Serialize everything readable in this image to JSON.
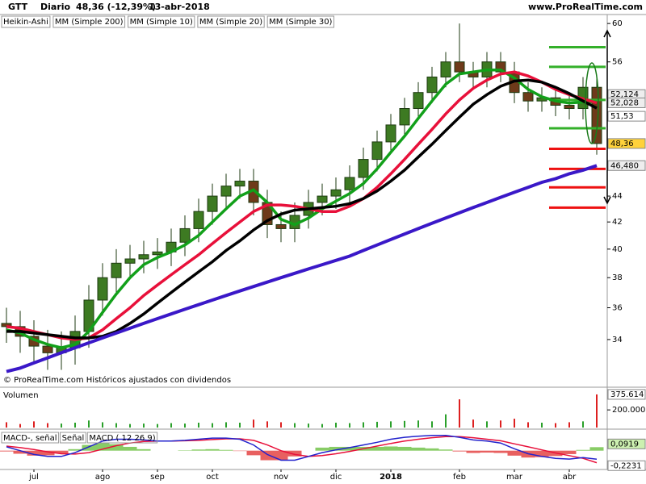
{
  "chart_data": [
    {
      "type": "candlestick",
      "title": "GTT",
      "period": "Diario",
      "last_change": "48,36 (-12,39%)",
      "date": "13-abr-2018",
      "source": "www.ProRealTime.com",
      "note": "© ProRealTime.com Históricos ajustados con dividendos",
      "log_scale": true,
      "ylim": [
        31.3,
        60.8
      ],
      "yticks": [
        34,
        36,
        38,
        40,
        42,
        44,
        56,
        60
      ],
      "candles": {
        "name": "Heikin-Ashi",
        "up_color": "#3d7a22",
        "down_color": "#6e3a1a",
        "last_label": "48,36",
        "open": [
          35,
          34.8,
          34.2,
          33.6,
          33.2,
          33.5,
          34.5,
          36.5,
          38,
          39,
          39.3,
          39.6,
          39.8,
          40.5,
          41.5,
          42.8,
          44,
          44.8,
          45.2,
          43.5,
          41.8,
          41.5,
          42.5,
          43.5,
          44,
          44.5,
          45.5,
          47,
          48.5,
          50,
          51.5,
          53,
          54.5,
          56,
          55,
          54.5,
          56,
          55,
          53,
          52.2,
          52.5,
          51.8,
          51.5,
          53.5
        ],
        "high": [
          36,
          35.8,
          35.2,
          34.6,
          34.5,
          35.5,
          37.5,
          39,
          40,
          40.3,
          40.6,
          40.8,
          41.5,
          42.5,
          43.8,
          45,
          45.8,
          46.2,
          46.2,
          44.5,
          42.8,
          43.5,
          44.5,
          45,
          45.5,
          46.5,
          48,
          49.5,
          51,
          52.5,
          54,
          55.5,
          57,
          60,
          56,
          57,
          57,
          56,
          54,
          53.5,
          53.5,
          52.8,
          54.5,
          54.5
        ],
        "low": [
          33.8,
          33.2,
          32.6,
          32.2,
          32.2,
          32.5,
          33.5,
          35.5,
          37,
          38,
          38.3,
          38.6,
          38.8,
          39.5,
          40.5,
          41.8,
          43,
          43.8,
          42.5,
          40.8,
          40.5,
          40.5,
          41.5,
          42.5,
          43,
          43.5,
          44.5,
          46,
          47.5,
          49,
          50.5,
          52,
          53.5,
          54,
          53.5,
          53.5,
          54,
          52,
          51.2,
          51.2,
          50.8,
          50.5,
          50.5,
          47.4
        ],
        "close": [
          34.8,
          34.2,
          33.6,
          33.2,
          33.5,
          34.5,
          36.5,
          38,
          39,
          39.3,
          39.6,
          39.8,
          40.5,
          41.5,
          42.8,
          44,
          44.8,
          45.2,
          43.5,
          41.8,
          41.5,
          42.5,
          43.5,
          44,
          44.5,
          45.5,
          47,
          48.5,
          50,
          51.5,
          53,
          54.5,
          56,
          55,
          54.5,
          56,
          55,
          53,
          52.2,
          52.5,
          51.8,
          51.5,
          53.5,
          48.36
        ]
      },
      "series": [
        {
          "name": "MM (Simple 10)",
          "color": "#12a01a",
          "last_label": "52,124",
          "values": [
            34.6,
            34.4,
            34,
            33.7,
            33.5,
            33.7,
            34.5,
            35.7,
            36.9,
            38,
            38.9,
            39.4,
            39.8,
            40.3,
            41,
            42,
            43,
            44,
            44.5,
            43.5,
            42.2,
            41.8,
            42.3,
            43,
            43.6,
            44.2,
            45,
            46.2,
            47.6,
            49,
            50.6,
            52.2,
            53.8,
            54.8,
            55,
            55.2,
            55.2,
            54.4,
            53.3,
            52.6,
            52.2,
            52,
            52.1,
            52.124
          ]
        },
        {
          "name": "MM (Simple 20)",
          "color": "#e8103a",
          "last_label": "52,028",
          "values": [
            34.8,
            34.7,
            34.5,
            34.3,
            34.1,
            34,
            34.1,
            34.6,
            35.3,
            36,
            36.8,
            37.5,
            38.2,
            38.9,
            39.6,
            40.4,
            41.2,
            42,
            42.8,
            43.3,
            43.3,
            43.2,
            43,
            42.8,
            42.8,
            43.2,
            43.8,
            44.7,
            45.8,
            47,
            48.3,
            49.6,
            51,
            52.3,
            53.4,
            54.2,
            54.8,
            55,
            54.6,
            54,
            53.3,
            52.8,
            52.4,
            52.028
          ]
        },
        {
          "name": "MM (Simple 30)",
          "color": "#000000",
          "last_label": "51,53",
          "values": [
            34.5,
            34.5,
            34.4,
            34.3,
            34.2,
            34.1,
            34.1,
            34.2,
            34.5,
            35,
            35.6,
            36.3,
            37,
            37.7,
            38.4,
            39.1,
            39.9,
            40.6,
            41.4,
            42.1,
            42.6,
            42.9,
            43,
            43.1,
            43.2,
            43.4,
            43.8,
            44.4,
            45.2,
            46.1,
            47.2,
            48.3,
            49.5,
            50.7,
            51.9,
            52.8,
            53.6,
            54.1,
            54.2,
            54,
            53.5,
            52.9,
            52.2,
            51.53
          ]
        },
        {
          "name": "MM (Simple 200)",
          "color": "#3a18c8",
          "last_label": "46,480",
          "values": [
            32.1,
            32.3,
            32.6,
            32.9,
            33.2,
            33.5,
            33.8,
            34.1,
            34.4,
            34.7,
            35,
            35.3,
            35.6,
            35.9,
            36.2,
            36.5,
            36.8,
            37.1,
            37.4,
            37.7,
            38,
            38.3,
            38.6,
            38.9,
            39.2,
            39.5,
            39.9,
            40.3,
            40.7,
            41.1,
            41.5,
            41.9,
            42.3,
            42.7,
            43.1,
            43.5,
            43.9,
            44.3,
            44.7,
            45.1,
            45.4,
            45.8,
            46.1,
            46.48
          ]
        }
      ],
      "levels": [
        {
          "color": "#33b02a",
          "values": [
            57.5,
            55.5,
            52.3,
            49.7
          ]
        },
        {
          "color": "#ee1111",
          "values": [
            47.9,
            46.2,
            44.7,
            43.1
          ]
        }
      ]
    },
    {
      "type": "bar",
      "title": "Volumen",
      "ylim": [
        0,
        430000
      ],
      "yticks": [
        {
          "value": 200000,
          "label": "200.000"
        }
      ],
      "up_color": "#2aa02a",
      "down_color": "#dd2020",
      "last_label": "375.614",
      "values": [
        60000,
        40000,
        70000,
        50000,
        45000,
        55000,
        80000,
        60000,
        50000,
        40000,
        45000,
        40000,
        50000,
        45000,
        55000,
        50000,
        60000,
        55000,
        90000,
        70000,
        60000,
        50000,
        45000,
        40000,
        55000,
        50000,
        60000,
        65000,
        70000,
        75000,
        80000,
        70000,
        150000,
        320000,
        90000,
        70000,
        80000,
        100000,
        60000,
        55000,
        50000,
        60000,
        70000,
        375614
      ]
    },
    {
      "type": "line",
      "ylim": [
        -0.45,
        0.5
      ],
      "categories": [
        null,
        null,
        "jul",
        null,
        null,
        null,
        null,
        "ago",
        null,
        null,
        null,
        "sep",
        null,
        null,
        null,
        "oct",
        null,
        null,
        null,
        null,
        "nov",
        null,
        null,
        null,
        "dic",
        null,
        null,
        null,
        "2018",
        null,
        null,
        null,
        null,
        "feb",
        null,
        null,
        null,
        "mar",
        null,
        null,
        null,
        "abr",
        null,
        null
      ],
      "histogram": {
        "name": "MACD-, señal",
        "up_color": "#88cc66",
        "down_color": "#e86060",
        "last_label": "0,0919",
        "values": [
          -0.02,
          -0.08,
          -0.13,
          -0.12,
          -0.07,
          0.04,
          0.15,
          0.21,
          0.17,
          0.1,
          0.04,
          0,
          0,
          0.01,
          0.03,
          0.04,
          0.02,
          -0.01,
          -0.12,
          -0.25,
          -0.25,
          -0.15,
          0,
          0.08,
          0.1,
          0.1,
          0.1,
          0.1,
          0.11,
          0.1,
          0.08,
          0.06,
          0.03,
          -0.02,
          -0.06,
          -0.05,
          -0.06,
          -0.13,
          -0.18,
          -0.17,
          -0.14,
          -0.09,
          0.02,
          0.0919
        ]
      },
      "series": [
        {
          "name": "Señal",
          "color": "#e8103a",
          "values": [
            0.12,
            0.08,
            0.03,
            -0.03,
            -0.08,
            -0.09,
            -0.05,
            0.04,
            0.13,
            0.2,
            0.24,
            0.25,
            0.25,
            0.26,
            0.27,
            0.29,
            0.31,
            0.31,
            0.27,
            0.15,
            0,
            -0.1,
            -0.15,
            -0.13,
            -0.08,
            -0.02,
            0.05,
            0.12,
            0.19,
            0.25,
            0.3,
            0.34,
            0.37,
            0.37,
            0.34,
            0.3,
            0.26,
            0.18,
            0.1,
            0.02,
            -0.06,
            -0.13,
            -0.2,
            -0.315
          ]
        },
        {
          "name": "MACD ( 12 26 9)",
          "color": "#2222cc",
          "last_label": "-0,2231",
          "values": [
            0.1,
            0,
            -0.1,
            -0.15,
            -0.15,
            -0.05,
            0.1,
            0.25,
            0.3,
            0.3,
            0.28,
            0.25,
            0.25,
            0.27,
            0.3,
            0.33,
            0.33,
            0.3,
            0.15,
            -0.1,
            -0.25,
            -0.25,
            -0.15,
            -0.05,
            0.02,
            0.08,
            0.15,
            0.22,
            0.3,
            0.35,
            0.38,
            0.4,
            0.4,
            0.35,
            0.28,
            0.25,
            0.2,
            0.05,
            -0.08,
            -0.15,
            -0.2,
            -0.22,
            -0.18,
            -0.2231
          ]
        }
      ]
    }
  ]
}
